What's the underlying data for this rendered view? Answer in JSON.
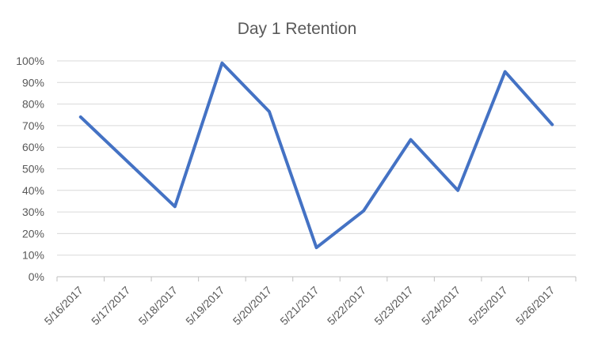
{
  "chart_data": {
    "type": "line",
    "title": "Day 1 Retention",
    "xlabel": "",
    "ylabel": "",
    "categories": [
      "5/16/2017",
      "5/17/2017",
      "5/18/2017",
      "5/19/2017",
      "5/20/2017",
      "5/21/2017",
      "5/22/2017",
      "5/23/2017",
      "5/24/2017",
      "5/25/2017",
      "5/26/2017"
    ],
    "series": [
      {
        "values": [
          0.74,
          null,
          0.325,
          0.99,
          0.765,
          0.135,
          0.305,
          0.635,
          0.4,
          0.95,
          0.705
        ],
        "connect_gaps": true
      }
    ],
    "ylim": [
      0,
      1
    ],
    "yticks": [
      0,
      0.1,
      0.2,
      0.3,
      0.4,
      0.5,
      0.6,
      0.7,
      0.8,
      0.9,
      1.0
    ],
    "ytick_labels": [
      "0%",
      "10%",
      "20%",
      "30%",
      "40%",
      "50%",
      "60%",
      "70%",
      "80%",
      "90%",
      "100%"
    ],
    "grid": true,
    "legend": "none",
    "colors": {
      "series": "#4472c4",
      "grid": "#d9d9d9",
      "text": "#595959"
    }
  }
}
